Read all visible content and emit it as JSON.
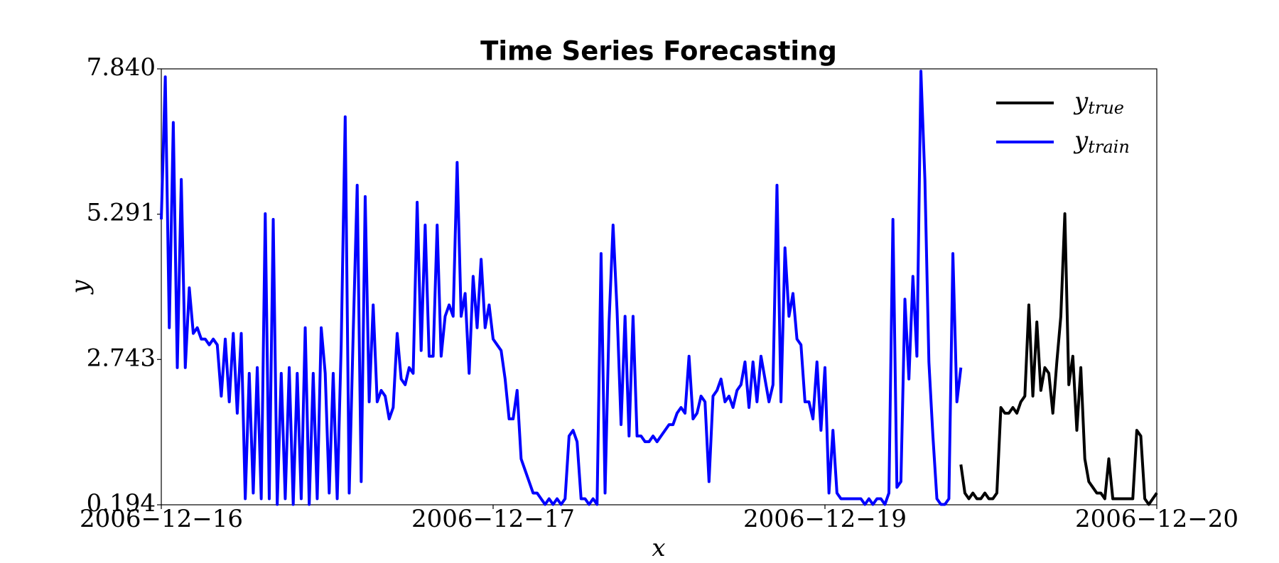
{
  "chart_data": {
    "type": "line",
    "title": "Time Series Forecasting",
    "x_label": "x",
    "y_label": "y",
    "xlim": [
      0,
      249
    ],
    "ylim": [
      0.194,
      7.84
    ],
    "xticks": [
      {
        "value": 0,
        "label": "2006−12−16"
      },
      {
        "value": 83,
        "label": "2006−12−17"
      },
      {
        "value": 166,
        "label": "2006−12−19"
      },
      {
        "value": 249,
        "label": "2006−12−20"
      }
    ],
    "yticks": [
      0.194,
      2.743,
      5.291,
      7.84
    ],
    "yticks_labels": [
      "0.194",
      "2.743",
      "5.291",
      "7.840"
    ],
    "legend": "upper right",
    "series": [
      {
        "name": "y_true",
        "color": "#000000",
        "x": [
          200,
          201,
          202,
          203,
          204,
          205,
          206,
          207,
          208,
          209,
          210,
          211,
          212,
          213,
          214,
          215,
          216,
          217,
          218,
          219,
          220,
          221,
          222,
          223,
          224,
          225,
          226,
          227,
          228,
          229,
          230,
          231,
          232,
          233,
          234,
          235,
          236,
          237,
          238,
          239,
          240,
          241,
          242,
          243,
          244,
          245,
          246,
          247,
          248,
          249
        ],
        "values": [
          0.9,
          0.4,
          0.3,
          0.4,
          0.3,
          0.3,
          0.4,
          0.3,
          0.3,
          0.4,
          1.9,
          1.8,
          1.8,
          1.9,
          1.8,
          2.0,
          2.1,
          3.7,
          2.1,
          3.4,
          2.2,
          2.6,
          2.5,
          1.8,
          2.7,
          3.5,
          5.3,
          2.3,
          2.8,
          1.5,
          2.6,
          1.0,
          0.6,
          0.5,
          0.4,
          0.4,
          0.3,
          1.0,
          0.3,
          0.3,
          0.3,
          0.3,
          0.3,
          0.3,
          1.5,
          1.4,
          0.3,
          0.2,
          0.3,
          0.4
        ]
      },
      {
        "name": "y_train",
        "color": "#0000ff",
        "x": [
          0,
          1,
          2,
          3,
          4,
          5,
          6,
          7,
          8,
          9,
          10,
          11,
          12,
          13,
          14,
          15,
          16,
          17,
          18,
          19,
          20,
          21,
          22,
          23,
          24,
          25,
          26,
          27,
          28,
          29,
          30,
          31,
          32,
          33,
          34,
          35,
          36,
          37,
          38,
          39,
          40,
          41,
          42,
          43,
          44,
          45,
          46,
          47,
          48,
          49,
          50,
          51,
          52,
          53,
          54,
          55,
          56,
          57,
          58,
          59,
          60,
          61,
          62,
          63,
          64,
          65,
          66,
          67,
          68,
          69,
          70,
          71,
          72,
          73,
          74,
          75,
          76,
          77,
          78,
          79,
          80,
          81,
          82,
          83,
          84,
          85,
          86,
          87,
          88,
          89,
          90,
          91,
          92,
          93,
          94,
          95,
          96,
          97,
          98,
          99,
          100,
          101,
          102,
          103,
          104,
          105,
          106,
          107,
          108,
          109,
          110,
          111,
          112,
          113,
          114,
          115,
          116,
          117,
          118,
          119,
          120,
          121,
          122,
          123,
          124,
          125,
          126,
          127,
          128,
          129,
          130,
          131,
          132,
          133,
          134,
          135,
          136,
          137,
          138,
          139,
          140,
          141,
          142,
          143,
          144,
          145,
          146,
          147,
          148,
          149,
          150,
          151,
          152,
          153,
          154,
          155,
          156,
          157,
          158,
          159,
          160,
          161,
          162,
          163,
          164,
          165,
          166,
          167,
          168,
          169,
          170,
          171,
          172,
          173,
          174,
          175,
          176,
          177,
          178,
          179,
          180,
          181,
          182,
          183,
          184,
          185,
          186,
          187,
          188,
          189,
          190,
          191,
          192,
          193,
          194,
          195,
          196,
          197,
          198,
          199,
          200
        ],
        "values": [
          5.2,
          7.7,
          3.3,
          6.9,
          2.6,
          5.9,
          2.6,
          4.0,
          3.2,
          3.3,
          3.1,
          3.1,
          3.0,
          3.1,
          3.0,
          2.1,
          3.1,
          2.0,
          3.2,
          1.8,
          3.2,
          0.3,
          2.5,
          0.4,
          2.6,
          0.3,
          5.3,
          0.3,
          5.2,
          0.2,
          2.5,
          0.3,
          2.6,
          0.2,
          2.5,
          0.3,
          3.3,
          0.2,
          2.5,
          0.3,
          3.3,
          2.5,
          0.4,
          2.5,
          0.3,
          3.0,
          7.0,
          0.4,
          3.2,
          5.8,
          0.6,
          5.6,
          2.0,
          3.7,
          2.0,
          2.2,
          2.1,
          1.7,
          1.9,
          3.2,
          2.4,
          2.3,
          2.6,
          2.5,
          5.5,
          2.9,
          5.1,
          2.8,
          2.8,
          5.1,
          2.8,
          3.5,
          3.7,
          3.5,
          6.2,
          3.5,
          3.9,
          2.5,
          4.2,
          3.3,
          4.5,
          3.3,
          3.7,
          3.1,
          3.0,
          2.9,
          2.4,
          1.7,
          1.7,
          2.2,
          1.0,
          0.8,
          0.6,
          0.4,
          0.4,
          0.3,
          0.2,
          0.3,
          0.2,
          0.3,
          0.2,
          0.3,
          1.4,
          1.5,
          1.3,
          0.3,
          0.3,
          0.2,
          0.3,
          0.2,
          4.6,
          0.4,
          3.4,
          5.1,
          3.6,
          1.6,
          3.5,
          1.4,
          3.5,
          1.4,
          1.4,
          1.3,
          1.3,
          1.4,
          1.3,
          1.4,
          1.5,
          1.6,
          1.6,
          1.8,
          1.9,
          1.8,
          2.8,
          1.7,
          1.8,
          2.1,
          2.0,
          0.6,
          2.1,
          2.2,
          2.4,
          2.0,
          2.1,
          1.9,
          2.2,
          2.3,
          2.7,
          1.9,
          2.7,
          2.0,
          2.8,
          2.4,
          2.0,
          2.3,
          5.8,
          2.0,
          4.7,
          3.5,
          3.9,
          3.1,
          3.0,
          2.0,
          2.0,
          1.7,
          2.7,
          1.5,
          2.6,
          0.4,
          1.5,
          0.4,
          0.3,
          0.3,
          0.3,
          0.3,
          0.3,
          0.3,
          0.2,
          0.3,
          0.2,
          0.3,
          0.3,
          0.2,
          0.4,
          5.2,
          0.5,
          0.6,
          3.8,
          2.4,
          4.2,
          2.8,
          7.8,
          5.9,
          2.7,
          1.4,
          0.3,
          0.2,
          0.2,
          0.3,
          4.6,
          2.0,
          2.6
        ]
      }
    ]
  }
}
